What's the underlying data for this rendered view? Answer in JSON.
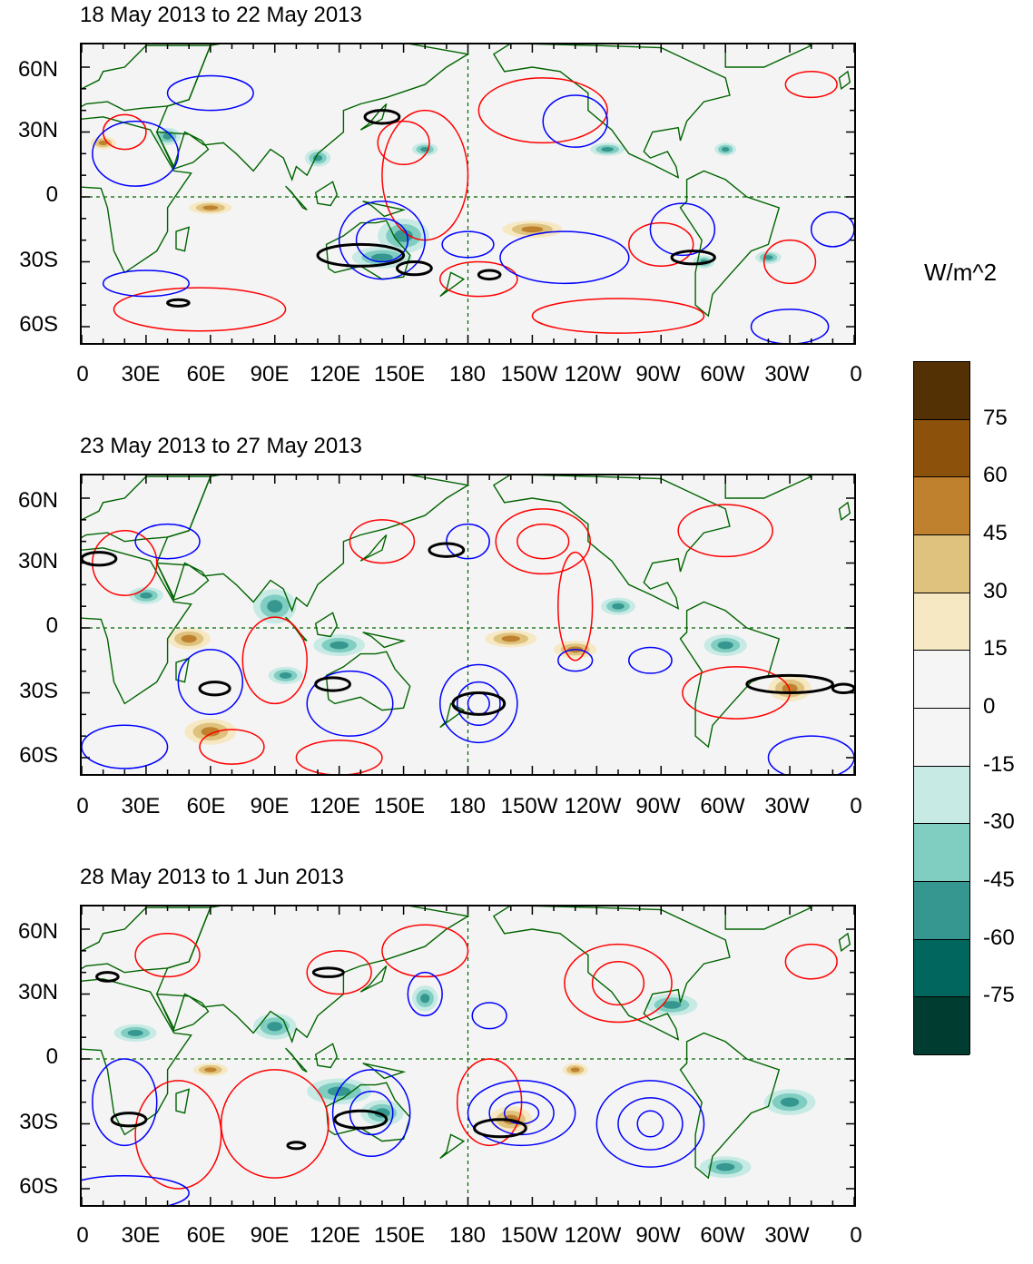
{
  "panels": [
    {
      "title": "18 May 2013 to 22 May 2013"
    },
    {
      "title": "23 May 2013 to 27 May 2013"
    },
    {
      "title": "28 May 2013 to 1 Jun 2013"
    }
  ],
  "lat_labels": [
    "60N",
    "30N",
    "0",
    "30S",
    "60S"
  ],
  "lon_labels": [
    "0",
    "30E",
    "60E",
    "90E",
    "120E",
    "150E",
    "180",
    "150W",
    "120W",
    "90W",
    "60W",
    "30W",
    "0"
  ],
  "colorbar": {
    "units": "W/m^2",
    "labels": [
      "75",
      "60",
      "45",
      "30",
      "15",
      "0",
      "-15",
      "-30",
      "-45",
      "-60",
      "-75"
    ],
    "colors": [
      "#543005",
      "#8c510a",
      "#bf812d",
      "#dfc27d",
      "#f6e8c3",
      "#f5f5f5",
      "#f5f5f5",
      "#c7eae5",
      "#80cdc1",
      "#35978f",
      "#01665e",
      "#003c30"
    ]
  },
  "colors": {
    "positive_contour": "#ff0000",
    "negative_contour": "#0000ff",
    "significance_contour": "#000000",
    "coastline": "#006400"
  }
}
